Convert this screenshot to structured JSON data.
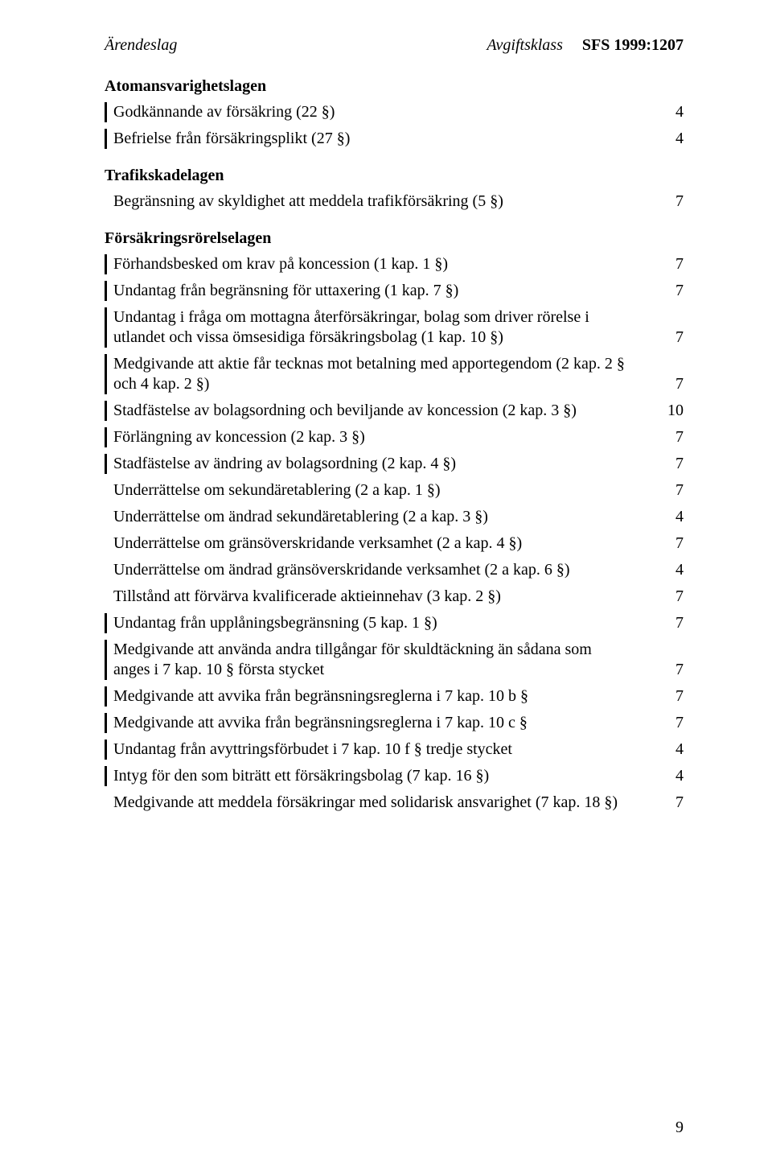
{
  "header": {
    "left": "Ärendeslag",
    "mid": "Avgiftsklass",
    "right": "SFS 1999:1207"
  },
  "sections": [
    {
      "title": "Atomansvarighetslagen",
      "rows": [
        {
          "bar": true,
          "text": "Godkännande av försäkring (22 §)",
          "val": "4"
        },
        {
          "bar": true,
          "text": "Befrielse från försäkringsplikt (27 §)",
          "val": "4"
        }
      ]
    },
    {
      "title": "Trafikskadelagen",
      "rows": [
        {
          "bar": false,
          "text": "Begränsning av skyldighet att meddela trafikförsäkring (5 §)",
          "val": "7"
        }
      ]
    },
    {
      "title": "Försäkringsrörelselagen",
      "rows": [
        {
          "bar": true,
          "text": "Förhandsbesked om krav på koncession (1 kap. 1 §)",
          "val": "7"
        },
        {
          "bar": true,
          "text": "Undantag från begränsning för uttaxering (1 kap. 7 §)",
          "val": "7"
        },
        {
          "bar": true,
          "text": "Undantag i fråga om mottagna återförsäkringar, bolag som driver rörelse i utlandet och vissa ömsesidiga försäkringsbolag (1 kap. 10 §)",
          "val": "7"
        },
        {
          "bar": true,
          "text": "Medgivande att aktie får tecknas mot betalning med apportegendom (2 kap. 2 § och 4 kap. 2 §)",
          "val": "7"
        },
        {
          "bar": true,
          "text": "Stadfästelse av bolagsordning och beviljande av koncession (2 kap. 3 §)",
          "val": "10"
        },
        {
          "bar": true,
          "text": "Förlängning av koncession (2 kap. 3 §)",
          "val": "7"
        },
        {
          "bar": true,
          "text": "Stadfästelse av ändring av bolagsordning (2 kap. 4 §)",
          "val": "7"
        },
        {
          "bar": false,
          "text": "Underrättelse om sekundäretablering (2 a kap. 1 §)",
          "val": "7"
        },
        {
          "bar": false,
          "text": "Underrättelse om ändrad sekundäretablering (2 a kap. 3 §)",
          "val": "4"
        },
        {
          "bar": false,
          "text": "Underrättelse om gränsöverskridande verksamhet (2 a kap. 4 §)",
          "val": "7"
        },
        {
          "bar": false,
          "text": "Underrättelse om ändrad gränsöverskridande verksamhet (2 a kap. 6 §)",
          "val": "4"
        },
        {
          "bar": false,
          "text": "Tillstånd att förvärva kvalificerade aktieinnehav (3 kap. 2 §)",
          "val": "7"
        },
        {
          "bar": true,
          "text": "Undantag från upplåningsbegränsning (5 kap. 1 §)",
          "val": "7"
        },
        {
          "bar": true,
          "text": "Medgivande att använda andra tillgångar för skuldtäckning än sådana som anges i 7 kap. 10 § första stycket",
          "val": "7"
        },
        {
          "bar": true,
          "text": "Medgivande att avvika från begränsningsreglerna i 7 kap. 10 b §",
          "val": "7"
        },
        {
          "bar": true,
          "text": "Medgivande att avvika från begränsningsreglerna i 7 kap. 10 c §",
          "val": "7"
        },
        {
          "bar": true,
          "text": "Undantag från avyttringsförbudet i 7 kap. 10 f § tredje stycket",
          "val": "4"
        },
        {
          "bar": true,
          "text": "Intyg för den som biträtt ett försäkringsbolag (7 kap. 16 §)",
          "val": "4"
        },
        {
          "bar": false,
          "text": "Medgivande att meddela försäkringar med solidarisk ansvarighet (7 kap. 18 §)",
          "val": "7"
        }
      ]
    }
  ],
  "pageNumber": "9"
}
